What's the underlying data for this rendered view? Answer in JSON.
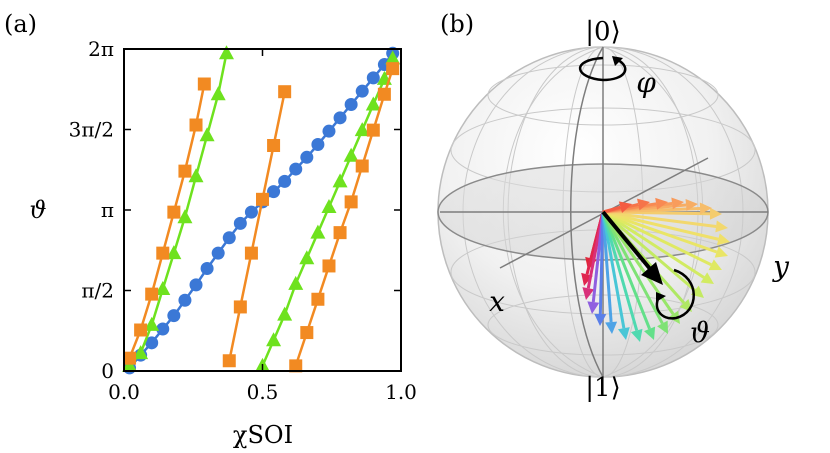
{
  "panels": {
    "a": {
      "label": "(a)"
    },
    "b": {
      "label": "(b)"
    }
  },
  "chart_data": {
    "type": "line",
    "title": "",
    "xlabel": "χSOI",
    "ylabel": "ϑ",
    "xlim": [
      0.0,
      1.0
    ],
    "ylim": [
      0.0,
      6.2832
    ],
    "x_ticks": [
      {
        "value": 0.0,
        "label": "0.0"
      },
      {
        "value": 0.5,
        "label": "0.5"
      },
      {
        "value": 1.0,
        "label": "1.0"
      }
    ],
    "y_ticks": [
      {
        "value": 0.0,
        "label": "0"
      },
      {
        "value": 1.5708,
        "label": "π/2"
      },
      {
        "value": 3.1416,
        "label": "π"
      },
      {
        "value": 4.7124,
        "label": "3π/2"
      },
      {
        "value": 6.2832,
        "label": "2π"
      }
    ],
    "series": [
      {
        "name": "blue circles",
        "color": "#3b78d6",
        "marker": "circle",
        "segments": [
          {
            "x": [
              0.02,
              0.06,
              0.1,
              0.14,
              0.18,
              0.22,
              0.26,
              0.3,
              0.34,
              0.38,
              0.42,
              0.46,
              0.5,
              0.54,
              0.58,
              0.62,
              0.66,
              0.7,
              0.74,
              0.78,
              0.82,
              0.86,
              0.9,
              0.94,
              0.97
            ],
            "y": [
              0.06,
              0.31,
              0.55,
              0.82,
              1.08,
              1.38,
              1.68,
              2.0,
              2.3,
              2.6,
              2.88,
              3.1,
              3.3,
              3.5,
              3.7,
              3.94,
              4.17,
              4.42,
              4.68,
              4.94,
              5.2,
              5.46,
              5.72,
              5.98,
              6.2
            ]
          }
        ]
      },
      {
        "name": "green triangles",
        "color": "#6ee21e",
        "marker": "triangle",
        "segments": [
          {
            "x": [
              0.02,
              0.06,
              0.1,
              0.14,
              0.18,
              0.22,
              0.26,
              0.3,
              0.34,
              0.37
            ],
            "y": [
              0.1,
              0.35,
              0.9,
              1.6,
              2.3,
              3.0,
              3.8,
              4.6,
              5.4,
              6.2
            ]
          },
          {
            "x": [
              0.5,
              0.54,
              0.58,
              0.62,
              0.66,
              0.7,
              0.74,
              0.78,
              0.82,
              0.86,
              0.9,
              0.94,
              0.97
            ],
            "y": [
              0.1,
              0.6,
              1.1,
              1.7,
              2.2,
              2.7,
              3.2,
              3.7,
              4.2,
              4.7,
              5.2,
              5.7,
              6.1
            ]
          }
        ]
      },
      {
        "name": "orange squares",
        "color": "#f28a22",
        "marker": "square",
        "segments": [
          {
            "x": [
              0.02,
              0.06,
              0.1,
              0.14,
              0.18,
              0.22,
              0.26,
              0.29
            ],
            "y": [
              0.25,
              0.8,
              1.5,
              2.3,
              3.1,
              3.9,
              4.8,
              5.6
            ]
          },
          {
            "x": [
              0.38,
              0.42,
              0.46,
              0.5,
              0.54,
              0.58
            ],
            "y": [
              0.2,
              1.25,
              2.3,
              3.35,
              4.4,
              5.45
            ]
          },
          {
            "x": [
              0.62,
              0.66,
              0.7,
              0.74,
              0.78,
              0.82,
              0.86,
              0.9,
              0.94,
              0.97
            ],
            "y": [
              0.1,
              0.75,
              1.4,
              2.05,
              2.7,
              3.3,
              4.0,
              4.7,
              5.4,
              5.9
            ]
          }
        ]
      }
    ]
  },
  "bloch": {
    "state_up": "|0⟩",
    "state_down": "|1⟩",
    "axis_x": "x",
    "axis_y": "y",
    "angle_phi": "φ",
    "angle_theta": "ϑ"
  }
}
